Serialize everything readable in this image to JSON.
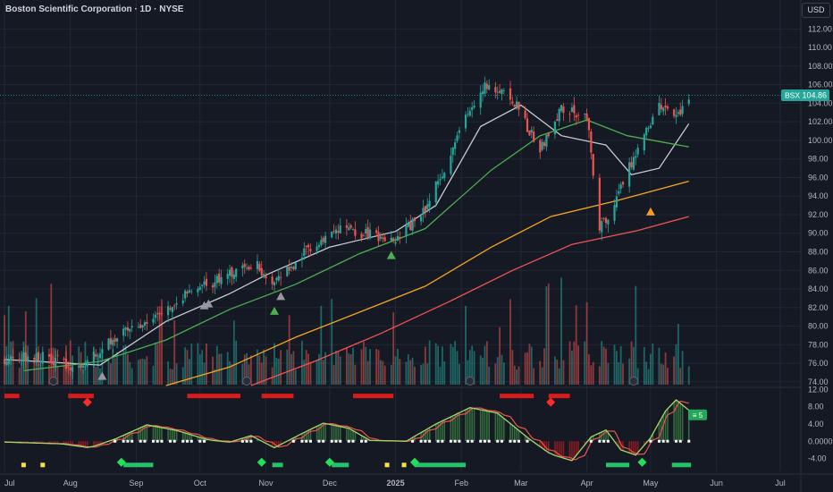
{
  "header": {
    "title": "Boston Scientific Corporation · 1D · NYSE",
    "currency": "USD"
  },
  "colors": {
    "bg": "#151924",
    "grid": "#232733",
    "up": "#26a69a",
    "down": "#ef5350",
    "text": "#b2b5be",
    "sma20": "#c8cad1",
    "sma50": "#4caf50",
    "sma100": "#f5a623",
    "sma200": "#f05454",
    "buy": "#26c26a",
    "sell": "#d81b1b",
    "signal_green": "#4caf50",
    "signal_gray": "#9598a1",
    "signal_orange": "#f59a23"
  },
  "chart_data": [
    {
      "type": "candlestick",
      "y_ticks": [
        "112.00",
        "110.00",
        "108.00",
        "106.00",
        "104.00",
        "102.00",
        "100.00",
        "98.00",
        "96.00",
        "94.00",
        "92.00",
        "90.00",
        "88.00",
        "86.00",
        "84.00",
        "82.00",
        "80.00",
        "78.00",
        "76.00",
        "74.00"
      ],
      "ylim": [
        73.5,
        113
      ],
      "x_labels": [
        "Jul",
        "Aug",
        "Sep",
        "Oct",
        "Nov",
        "Dec",
        "2025",
        "Feb",
        "Mar",
        "Apr",
        "May",
        "Jun",
        "Jul"
      ],
      "x_label_dates": [
        "2024-07-01",
        "2024-08-01",
        "2024-09-01",
        "2024-10-01",
        "2024-11-01",
        "2024-12-01",
        "2025-01-01",
        "2025-02-01",
        "2025-03-01",
        "2025-04-01",
        "2025-05-01",
        "2025-06-01",
        "2025-07-01"
      ],
      "last_price": {
        "symbol": "BSX",
        "value": "104.86",
        "price": 104.86
      },
      "anchors": [
        [
          "2024-07-01",
          76.5
        ],
        [
          "2024-07-20",
          76.8
        ],
        [
          "2024-08-05",
          75.2
        ],
        [
          "2024-08-20",
          78.5
        ],
        [
          "2024-09-05",
          80.5
        ],
        [
          "2024-09-25",
          83.5
        ],
        [
          "2024-10-15",
          85.5
        ],
        [
          "2024-10-28",
          86.5
        ],
        [
          "2024-11-05",
          84.5
        ],
        [
          "2024-11-20",
          88
        ],
        [
          "2024-12-05",
          90.3
        ],
        [
          "2024-12-20",
          89.8
        ],
        [
          "2025-01-02",
          89.3
        ],
        [
          "2025-01-15",
          92.5
        ],
        [
          "2025-01-22",
          96
        ],
        [
          "2025-02-03",
          102.5
        ],
        [
          "2025-02-12",
          106.2
        ],
        [
          "2025-02-25",
          104.5
        ],
        [
          "2025-03-05",
          101
        ],
        [
          "2025-03-10",
          99
        ],
        [
          "2025-03-20",
          103.5
        ],
        [
          "2025-04-01",
          102.5
        ],
        [
          "2025-04-07",
          90.5
        ],
        [
          "2025-04-15",
          93.5
        ],
        [
          "2025-04-25",
          99.5
        ],
        [
          "2025-05-05",
          103.5
        ],
        [
          "2025-05-14",
          102.8
        ],
        [
          "2025-05-19",
          104.86
        ]
      ],
      "volume_overlay": {
        "ylim": [
          0,
          100
        ]
      },
      "moving_averages": [
        {
          "key": "sma20",
          "points": [
            [
              "2024-07-01",
              76.4
            ],
            [
              "2024-08-15",
              75.8
            ],
            [
              "2024-09-15",
              80.5
            ],
            [
              "2024-10-15",
              83.5
            ],
            [
              "2024-11-01",
              85.5
            ],
            [
              "2024-12-01",
              88.5
            ],
            [
              "2025-01-01",
              90.2
            ],
            [
              "2025-01-20",
              93
            ],
            [
              "2025-02-10",
              101.5
            ],
            [
              "2025-03-01",
              103.8
            ],
            [
              "2025-03-20",
              100.5
            ],
            [
              "2025-04-10",
              99.5
            ],
            [
              "2025-04-22",
              96.3
            ],
            [
              "2025-05-05",
              97
            ],
            [
              "2025-05-19",
              101.8
            ]
          ]
        },
        {
          "key": "sma50",
          "points": [
            [
              "2024-07-10",
              75.2
            ],
            [
              "2024-08-15",
              76.2
            ],
            [
              "2024-09-15",
              78.5
            ],
            [
              "2024-10-15",
              81.8
            ],
            [
              "2024-11-15",
              84.5
            ],
            [
              "2024-12-15",
              87.8
            ],
            [
              "2025-01-15",
              90.5
            ],
            [
              "2025-02-15",
              96.8
            ],
            [
              "2025-03-10",
              100.5
            ],
            [
              "2025-04-01",
              102.2
            ],
            [
              "2025-04-20",
              100.5
            ],
            [
              "2025-05-19",
              99.3
            ]
          ]
        },
        {
          "key": "sma100",
          "points": [
            [
              "2024-09-15",
              73.6
            ],
            [
              "2024-10-15",
              75.6
            ],
            [
              "2024-11-15",
              78.8
            ],
            [
              "2024-12-15",
              81.5
            ],
            [
              "2025-01-15",
              84.3
            ],
            [
              "2025-02-15",
              88.5
            ],
            [
              "2025-03-15",
              91.8
            ],
            [
              "2025-04-15",
              93.5
            ],
            [
              "2025-05-19",
              95.6
            ]
          ]
        },
        {
          "key": "sma200",
          "points": [
            [
              "2024-10-25",
              73.6
            ],
            [
              "2024-11-25",
              76.3
            ],
            [
              "2024-12-25",
              79.2
            ],
            [
              "2025-01-25",
              82.5
            ],
            [
              "2025-02-25",
              86
            ],
            [
              "2025-03-25",
              88.8
            ],
            [
              "2025-04-25",
              90.3
            ],
            [
              "2025-05-19",
              91.8
            ]
          ]
        }
      ],
      "signals": [
        {
          "date": "2024-08-16",
          "value": 74.6,
          "key": "signal_gray"
        },
        {
          "date": "2024-10-03",
          "value": 82.2,
          "key": "signal_gray"
        },
        {
          "date": "2024-10-05",
          "value": 82.4,
          "key": "signal_gray"
        },
        {
          "date": "2024-11-08",
          "value": 83.2,
          "key": "signal_gray"
        },
        {
          "date": "2024-11-05",
          "value": 81.6,
          "key": "signal_green"
        },
        {
          "date": "2024-12-30",
          "value": 87.6,
          "key": "signal_green"
        },
        {
          "date": "2025-05-01",
          "value": 92.3,
          "key": "signal_orange"
        }
      ],
      "earnings_markers": [
        "2024-07-24",
        "2024-10-23",
        "2025-02-05",
        "2025-04-23"
      ]
    },
    {
      "type": "oscillator",
      "y_ticks": [
        "12.00",
        "8.00",
        "4.00",
        "0.0000",
        "-4.00"
      ],
      "ylim": [
        -7,
        12.5
      ],
      "anchors": [
        [
          "2024-07-01",
          -0.2
        ],
        [
          "2024-07-28",
          -0.6
        ],
        [
          "2024-08-10",
          -1.5
        ],
        [
          "2024-08-22",
          0.5
        ],
        [
          "2024-09-06",
          3.8
        ],
        [
          "2024-09-20",
          2.5
        ],
        [
          "2024-10-05",
          0.3
        ],
        [
          "2024-10-15",
          -0.2
        ],
        [
          "2024-10-25",
          1.3
        ],
        [
          "2024-11-05",
          -1.5
        ],
        [
          "2024-11-18",
          1.8
        ],
        [
          "2024-11-28",
          4.2
        ],
        [
          "2024-12-10",
          3.0
        ],
        [
          "2024-12-20",
          0.2
        ],
        [
          "2025-01-06",
          0.0
        ],
        [
          "2025-01-20",
          4.0
        ],
        [
          "2025-02-05",
          7.8
        ],
        [
          "2025-02-18",
          6.5
        ],
        [
          "2025-03-05",
          0.5
        ],
        [
          "2025-03-15",
          -3.0
        ],
        [
          "2025-03-25",
          -4.5
        ],
        [
          "2025-04-03",
          1.0
        ],
        [
          "2025-04-10",
          2.6
        ],
        [
          "2025-04-17",
          -2.0
        ],
        [
          "2025-04-24",
          -3.2
        ],
        [
          "2025-05-01",
          0.8
        ],
        [
          "2025-05-08",
          7.0
        ],
        [
          "2025-05-13",
          9.6
        ],
        [
          "2025-05-19",
          7.2
        ]
      ],
      "bands": [
        {
          "from": "2024-07-01",
          "to": "2024-07-08",
          "row": "top",
          "key": "sell"
        },
        {
          "from": "2024-07-31",
          "to": "2024-08-12",
          "row": "top",
          "key": "sell"
        },
        {
          "from": "2024-09-25",
          "to": "2024-10-20",
          "row": "top",
          "key": "sell"
        },
        {
          "from": "2024-10-30",
          "to": "2024-11-14",
          "row": "top",
          "key": "sell"
        },
        {
          "from": "2024-12-12",
          "to": "2024-12-31",
          "row": "top",
          "key": "sell"
        },
        {
          "from": "2025-02-19",
          "to": "2025-03-07",
          "row": "top",
          "key": "sell"
        },
        {
          "from": "2025-03-14",
          "to": "2025-03-24",
          "row": "top",
          "key": "sell"
        },
        {
          "from": "2024-08-26",
          "to": "2024-09-09",
          "row": "bottom",
          "key": "buy"
        },
        {
          "from": "2024-11-04",
          "to": "2024-11-09",
          "row": "bottom",
          "key": "buy"
        },
        {
          "from": "2024-12-02",
          "to": "2024-12-10",
          "row": "bottom",
          "key": "buy"
        },
        {
          "from": "2025-01-10",
          "to": "2025-02-03",
          "row": "bottom",
          "key": "buy"
        },
        {
          "from": "2025-04-10",
          "to": "2025-04-21",
          "row": "bottom",
          "key": "buy"
        },
        {
          "from": "2025-05-11",
          "to": "2025-05-20",
          "row": "bottom",
          "key": "buy"
        }
      ],
      "markers": [
        {
          "date": "2024-08-09",
          "row": "top",
          "shape": "diamond",
          "key": "sell"
        },
        {
          "date": "2025-03-15",
          "row": "top",
          "shape": "diamond",
          "key": "sell"
        },
        {
          "date": "2024-08-25",
          "row": "bottom",
          "shape": "diamond",
          "key": "buy"
        },
        {
          "date": "2024-10-30",
          "row": "bottom",
          "shape": "diamond",
          "key": "buy"
        },
        {
          "date": "2024-12-01",
          "row": "bottom",
          "shape": "diamond",
          "key": "buy"
        },
        {
          "date": "2025-01-10",
          "row": "bottom",
          "shape": "diamond",
          "key": "buy"
        },
        {
          "date": "2025-04-27",
          "row": "bottom",
          "shape": "diamond",
          "key": "buy"
        },
        {
          "date": "2024-07-10",
          "row": "bottom",
          "shape": "square",
          "key": "yellow"
        },
        {
          "date": "2024-07-19",
          "row": "bottom",
          "shape": "square",
          "key": "yellow"
        },
        {
          "date": "2024-12-28",
          "row": "bottom",
          "shape": "square",
          "key": "yellow"
        },
        {
          "date": "2025-01-05",
          "row": "bottom",
          "shape": "square",
          "key": "yellow"
        }
      ],
      "badge": "≡ 5"
    }
  ]
}
